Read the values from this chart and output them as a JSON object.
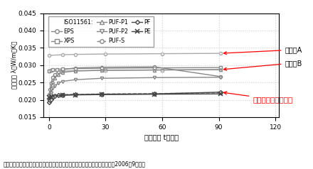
{
  "xlabel": "経過時間 t（日）",
  "ylabel": "熱伝導率 λ（W/m・K）",
  "caption": "断熱材の長期性能に関する研究　日本建築学会大会学術講演梗概集（関東）2006年9月より",
  "ylim": [
    0.015,
    0.045
  ],
  "xlim": [
    -3,
    122
  ],
  "xticks": [
    0,
    30,
    60,
    90,
    120
  ],
  "yticks": [
    0.015,
    0.02,
    0.025,
    0.03,
    0.035,
    0.04,
    0.045
  ],
  "annotation_A": "他素材A",
  "annotation_B": "他素材B",
  "annotation_PF": "フェノールフォーム",
  "bg_color": "#ffffff",
  "grid_color": "#cccccc",
  "other_a_x": [
    0,
    7,
    14,
    30,
    60,
    91
  ],
  "other_a_y": [
    0.0328,
    0.033,
    0.0331,
    0.0332,
    0.0333,
    0.0334
  ],
  "other_b_x": [
    0,
    7,
    14,
    30,
    60,
    91
  ],
  "other_b_y": [
    0.0282,
    0.0283,
    0.0284,
    0.0285,
    0.0286,
    0.0287
  ],
  "eps_x": [
    0,
    0.5,
    1,
    2,
    3,
    5,
    7,
    14,
    28,
    56,
    91
  ],
  "eps_y": [
    0.0215,
    0.023,
    0.0248,
    0.0265,
    0.0273,
    0.0281,
    0.0287,
    0.0292,
    0.0294,
    0.0295,
    0.0267
  ],
  "xps_x": [
    0,
    1,
    2,
    4,
    7,
    14,
    28,
    56,
    91
  ],
  "xps_y": [
    0.0283,
    0.0285,
    0.0287,
    0.0288,
    0.0289,
    0.029,
    0.0291,
    0.0292,
    0.0293
  ],
  "puf_p1_x": [
    0,
    0.5,
    1,
    2,
    3,
    5,
    7,
    14,
    28,
    56,
    91
  ],
  "puf_p1_y": [
    0.0207,
    0.0218,
    0.0233,
    0.0253,
    0.0263,
    0.0273,
    0.0279,
    0.0283,
    0.0285,
    0.0286,
    0.0287
  ],
  "puf_p2_x": [
    0,
    0.5,
    1,
    2,
    3,
    5,
    7,
    14,
    28,
    56,
    91
  ],
  "puf_p2_y": [
    0.02,
    0.021,
    0.022,
    0.0233,
    0.024,
    0.0248,
    0.0253,
    0.0258,
    0.0262,
    0.0264,
    0.0265
  ],
  "puf_s_x": [
    0,
    1,
    7,
    28,
    56,
    91
  ],
  "puf_s_y": [
    0.0212,
    0.0213,
    0.0215,
    0.0217,
    0.0218,
    0.022
  ],
  "pf_x": [
    0,
    0.5,
    1,
    2,
    3,
    5,
    7,
    14,
    28,
    56,
    91
  ],
  "pf_y": [
    0.0193,
    0.0198,
    0.0202,
    0.0208,
    0.0211,
    0.0213,
    0.0214,
    0.0215,
    0.0216,
    0.0217,
    0.0222
  ],
  "pe_x": [
    0,
    1,
    7,
    14,
    28,
    56,
    91
  ],
  "pe_y": [
    0.0207,
    0.021,
    0.0213,
    0.0214,
    0.0215,
    0.0216,
    0.0217
  ],
  "gray": "#888888",
  "dgray": "#444444",
  "lgray": "#aaaaaa"
}
